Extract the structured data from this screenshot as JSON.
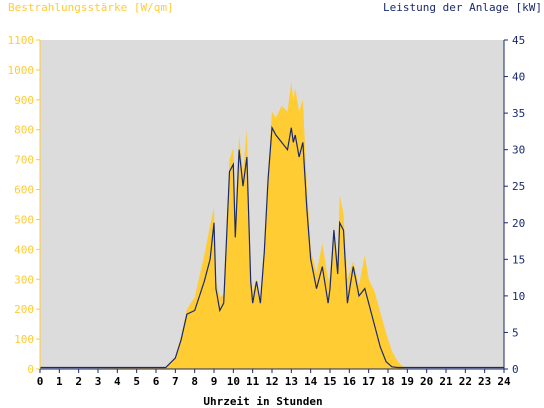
{
  "chart_data": {
    "type": "area",
    "left_title": "Bestrahlungsstärke [W/qm]",
    "right_title": "Leistung der Anlage [kW]",
    "xlabel": "Uhrzeit in Stunden",
    "xlim": [
      0,
      24
    ],
    "ylim_left": [
      0,
      1100
    ],
    "ylim_right": [
      0,
      45
    ],
    "x_ticks": [
      "0",
      "1",
      "2",
      "3",
      "4",
      "5",
      "6",
      "7",
      "8",
      "9",
      "10",
      "11",
      "12",
      "13",
      "14",
      "15",
      "16",
      "17",
      "18",
      "19",
      "20",
      "21",
      "22",
      "23",
      "24"
    ],
    "left_ticks": [
      "0",
      "100",
      "200",
      "300",
      "400",
      "500",
      "600",
      "700",
      "800",
      "900",
      "1000",
      "1100"
    ],
    "right_ticks": [
      "0",
      "5",
      "10",
      "15",
      "20",
      "25",
      "30",
      "35",
      "40",
      "45"
    ],
    "grid": false,
    "colors": {
      "plot_bg": "#dcdcdc",
      "irradiance": "#ffcc33",
      "power": "#1a2a6c",
      "left_text": "#ffcc33",
      "right_text": "#1a2a6c",
      "axis_text": "#000000"
    },
    "series": [
      {
        "axis": "left",
        "style": "area",
        "x": [
          0,
          6.5,
          7,
          7.3,
          7.6,
          8,
          8.5,
          8.8,
          9,
          9.1,
          9.3,
          9.5,
          9.8,
          10,
          10.1,
          10.3,
          10.5,
          10.7,
          10.9,
          11,
          11.2,
          11.4,
          11.6,
          11.8,
          12,
          12.2,
          12.5,
          12.8,
          13,
          13.1,
          13.2,
          13.4,
          13.6,
          13.8,
          14,
          14.3,
          14.6,
          14.9,
          15,
          15.2,
          15.4,
          15.5,
          15.7,
          15.9,
          16.2,
          16.5,
          16.8,
          17,
          17.3,
          17.6,
          17.9,
          18.2,
          18.5,
          18.8,
          19,
          24
        ],
        "y": [
          0,
          5,
          40,
          110,
          200,
          240,
          380,
          480,
          540,
          300,
          240,
          250,
          700,
          740,
          500,
          780,
          660,
          800,
          310,
          260,
          300,
          230,
          420,
          660,
          860,
          840,
          880,
          860,
          960,
          900,
          940,
          860,
          900,
          620,
          400,
          320,
          420,
          300,
          310,
          480,
          360,
          580,
          520,
          300,
          360,
          280,
          380,
          300,
          260,
          190,
          120,
          60,
          25,
          5,
          0,
          0
        ]
      },
      {
        "axis": "right",
        "style": "line",
        "x": [
          0,
          6.5,
          7,
          7.3,
          7.6,
          8,
          8.5,
          8.8,
          9,
          9.1,
          9.3,
          9.5,
          9.8,
          10,
          10.1,
          10.3,
          10.5,
          10.7,
          10.9,
          11,
          11.2,
          11.4,
          11.6,
          11.8,
          12,
          12.2,
          12.5,
          12.8,
          13,
          13.1,
          13.2,
          13.4,
          13.6,
          13.8,
          14,
          14.3,
          14.6,
          14.9,
          15,
          15.2,
          15.4,
          15.5,
          15.7,
          15.9,
          16.2,
          16.5,
          16.8,
          17,
          17.3,
          17.6,
          17.9,
          18.2,
          18.5,
          18.8,
          19,
          24
        ],
        "y": [
          0.2,
          0.2,
          1.5,
          4,
          7.5,
          8,
          12,
          15,
          20,
          11,
          8,
          9,
          27,
          28,
          18,
          30,
          25,
          29,
          12,
          9,
          12,
          9,
          16,
          26,
          33,
          32,
          31,
          30,
          33,
          31,
          32,
          29,
          31,
          22,
          15,
          11,
          14,
          9,
          11,
          19,
          13,
          20,
          19,
          9,
          14,
          10,
          11,
          9,
          6,
          3,
          1,
          0.3,
          0.2,
          0.2,
          0.2,
          0.2
        ]
      }
    ]
  }
}
